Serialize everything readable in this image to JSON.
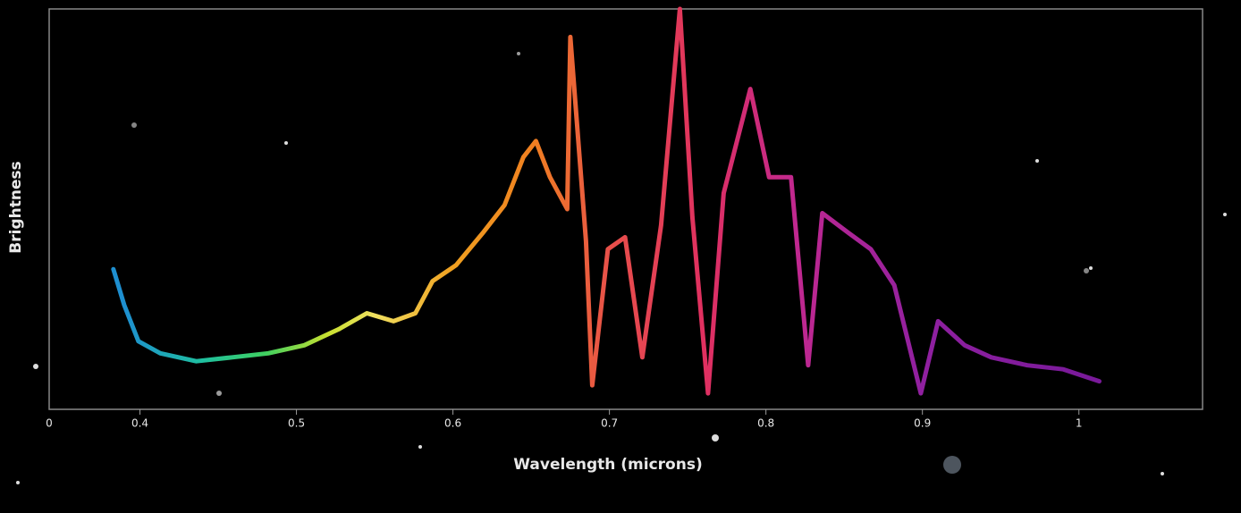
{
  "chart_data": {
    "type": "line",
    "x_axis_label": "Wavelength (microns)",
    "y_axis_label": "Brightness",
    "x_origin_label": "0",
    "x": [
      0.383,
      0.39,
      0.399,
      0.413,
      0.436,
      0.459,
      0.482,
      0.505,
      0.527,
      0.545,
      0.562,
      0.576,
      0.587,
      0.602,
      0.619,
      0.633,
      0.645,
      0.653,
      0.662,
      0.673,
      0.675,
      0.685,
      0.689,
      0.699,
      0.71,
      0.721,
      0.733,
      0.745,
      0.753,
      0.763,
      0.773,
      0.79,
      0.802,
      0.816,
      0.827,
      0.836,
      0.853,
      0.867,
      0.882,
      0.899,
      0.91,
      0.927,
      0.944,
      0.967,
      0.99,
      1.013
    ],
    "values": [
      35,
      26,
      17,
      14,
      12,
      13,
      14,
      16,
      20,
      24,
      22,
      24,
      32,
      36,
      44,
      51,
      63,
      67,
      58,
      50,
      93,
      42,
      6,
      40,
      43,
      13,
      46,
      100,
      48,
      4,
      54,
      80,
      58,
      58,
      11,
      49,
      44,
      40,
      31,
      4,
      22,
      16,
      13,
      11,
      10,
      7
    ],
    "color_stops": [
      {
        "x": 0.39,
        "color": "#1e8fd0"
      },
      {
        "x": 0.44,
        "color": "#1fc0a0"
      },
      {
        "x": 0.48,
        "color": "#3fd060"
      },
      {
        "x": 0.52,
        "color": "#c8e030"
      },
      {
        "x": 0.55,
        "color": "#f0e060"
      },
      {
        "x": 0.6,
        "color": "#f0a020"
      },
      {
        "x": 0.65,
        "color": "#f08020"
      },
      {
        "x": 0.7,
        "color": "#e8504a"
      },
      {
        "x": 0.76,
        "color": "#e03060"
      },
      {
        "x": 0.82,
        "color": "#c02890"
      },
      {
        "x": 0.9,
        "color": "#9020a0"
      },
      {
        "x": 1.0,
        "color": "#7a1a9a"
      }
    ],
    "xlim": [
      0.342,
      1.079
    ],
    "ylim": [
      0,
      100
    ],
    "xticks": [
      0.4,
      0.5,
      0.6,
      0.7,
      0.8,
      0.9,
      1
    ]
  }
}
